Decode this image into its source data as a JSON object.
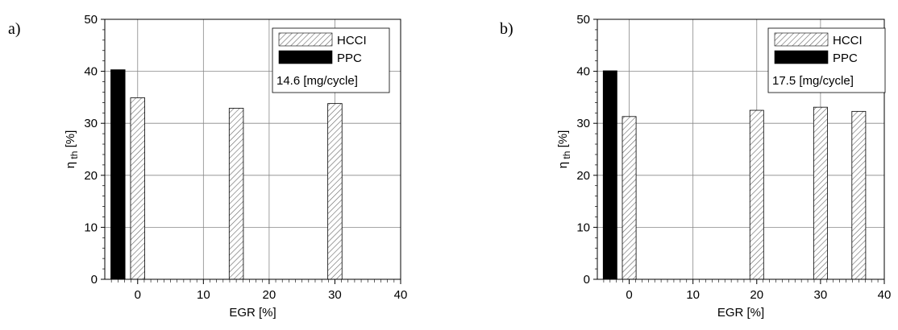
{
  "chart_data": [
    {
      "type": "bar",
      "panel_label": "a)",
      "xlabel": "EGR [%]",
      "ylabel": "η th [%]",
      "ylabel_main": "η",
      "ylabel_sub": "th",
      "ylabel_unit": "[%]",
      "xlim": [
        -5,
        40
      ],
      "ylim": [
        0,
        50
      ],
      "x_ticks": [
        0,
        10,
        20,
        30,
        40
      ],
      "x_tick_labels": [
        "0",
        "10",
        "20",
        "30",
        "40"
      ],
      "y_ticks": [
        0,
        10,
        20,
        30,
        40,
        50
      ],
      "y_tick_labels": [
        "0",
        "10",
        "20",
        "30",
        "40",
        "50"
      ],
      "grid": true,
      "legend_position": "top-right",
      "annotation": "14.6 [mg/cycle]",
      "series": [
        {
          "name": "PPC",
          "color": "#000000",
          "pattern": "solid",
          "x": [
            -3
          ],
          "values": [
            40.3
          ]
        },
        {
          "name": "HCCI",
          "color": "#ffffff",
          "pattern": "hatched",
          "x": [
            0,
            15,
            30
          ],
          "values": [
            34.9,
            32.9,
            33.8
          ]
        }
      ]
    },
    {
      "type": "bar",
      "panel_label": "b)",
      "xlabel": "EGR [%]",
      "ylabel": "η th [%]",
      "ylabel_main": "η",
      "ylabel_sub": "th",
      "ylabel_unit": "[%]",
      "xlim": [
        -5,
        40
      ],
      "ylim": [
        0,
        50
      ],
      "x_ticks": [
        0,
        10,
        20,
        30,
        40
      ],
      "x_tick_labels": [
        "0",
        "10",
        "20",
        "30",
        "40"
      ],
      "y_ticks": [
        0,
        10,
        20,
        30,
        40,
        50
      ],
      "y_tick_labels": [
        "0",
        "10",
        "20",
        "30",
        "40",
        "50"
      ],
      "grid": true,
      "legend_position": "top-right",
      "annotation": "17.5 [mg/cycle]",
      "series": [
        {
          "name": "PPC",
          "color": "#000000",
          "pattern": "solid",
          "x": [
            -3
          ],
          "values": [
            40.1
          ]
        },
        {
          "name": "HCCI",
          "color": "#ffffff",
          "pattern": "hatched",
          "x": [
            0,
            20,
            30,
            36
          ],
          "values": [
            31.3,
            32.5,
            33.1,
            32.3
          ]
        }
      ]
    }
  ]
}
